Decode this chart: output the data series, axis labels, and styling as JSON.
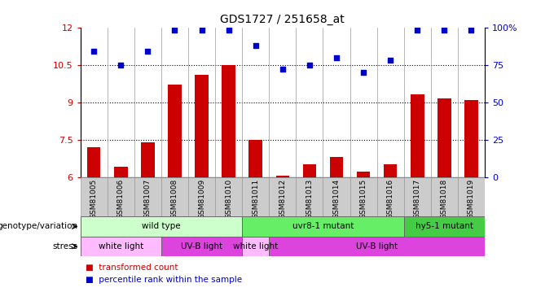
{
  "title": "GDS1727 / 251658_at",
  "samples": [
    "GSM81005",
    "GSM81006",
    "GSM81007",
    "GSM81008",
    "GSM81009",
    "GSM81010",
    "GSM81011",
    "GSM81012",
    "GSM81013",
    "GSM81014",
    "GSM81015",
    "GSM81016",
    "GSM81017",
    "GSM81018",
    "GSM81019"
  ],
  "bar_values": [
    7.2,
    6.4,
    7.4,
    9.7,
    10.1,
    10.5,
    7.5,
    6.05,
    6.5,
    6.8,
    6.2,
    6.5,
    9.3,
    9.15,
    9.1
  ],
  "dot_values": [
    84,
    75,
    84,
    98,
    98,
    98,
    88,
    72,
    75,
    80,
    70,
    78,
    98,
    98,
    98
  ],
  "bar_color": "#cc0000",
  "dot_color": "#0000cc",
  "ylim_left": [
    6,
    12
  ],
  "ylim_right": [
    0,
    100
  ],
  "yticks_left": [
    6,
    7.5,
    9,
    10.5,
    12
  ],
  "yticks_right": [
    0,
    25,
    50,
    75,
    100
  ],
  "ytick_labels_right": [
    "0",
    "25",
    "50",
    "75",
    "100%"
  ],
  "genotype_groups": [
    {
      "label": "wild type",
      "start": 0,
      "end": 6,
      "color": "#ccffcc"
    },
    {
      "label": "uvr8-1 mutant",
      "start": 6,
      "end": 12,
      "color": "#66ee66"
    },
    {
      "label": "hy5-1 mutant",
      "start": 12,
      "end": 15,
      "color": "#44cc44"
    }
  ],
  "stress_groups": [
    {
      "label": "white light",
      "start": 0,
      "end": 3,
      "color": "#ffbbff"
    },
    {
      "label": "UV-B light",
      "start": 3,
      "end": 6,
      "color": "#dd44dd"
    },
    {
      "label": "white light",
      "start": 6,
      "end": 7,
      "color": "#ffbbff"
    },
    {
      "label": "UV-B light",
      "start": 7,
      "end": 15,
      "color": "#dd44dd"
    }
  ],
  "background_color": "#ffffff",
  "xtick_bg_color": "#cccccc",
  "bar_width": 0.5
}
